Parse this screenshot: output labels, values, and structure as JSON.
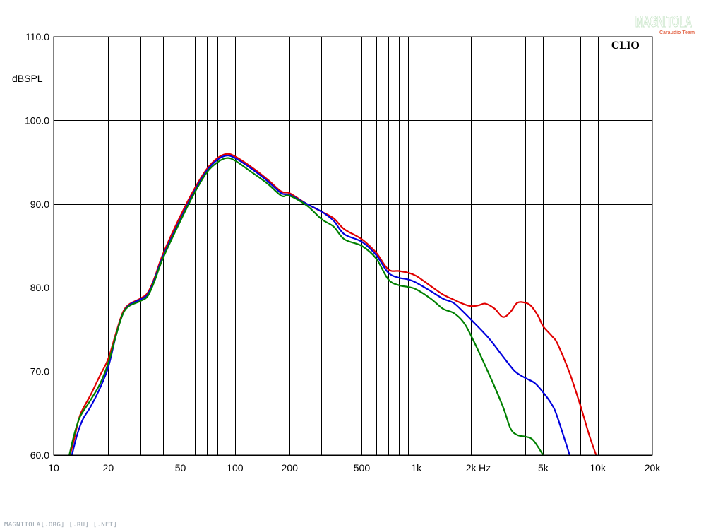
{
  "brand": "CLIO",
  "watermark": {
    "main": "MAGNITOLA",
    "sub": "Caraudio Team"
  },
  "footer": "MAGNITOLA[.ORG] [.RU] [.NET]",
  "chart_data": {
    "type": "line",
    "x_scale": "log",
    "xlim": [
      10,
      20000
    ],
    "ylim": [
      60,
      110
    ],
    "ylabel": "dBSPL",
    "xunit": "Hz",
    "grid": true,
    "y_ticks": [
      {
        "value": 60,
        "label": "60.0"
      },
      {
        "value": 70,
        "label": "70.0"
      },
      {
        "value": 80,
        "label": "80.0"
      },
      {
        "value": 90,
        "label": "90.0"
      },
      {
        "value": 100,
        "label": "100.0"
      },
      {
        "value": 110,
        "label": "110.0"
      }
    ],
    "x_ticks": [
      {
        "value": 10,
        "label": "10"
      },
      {
        "value": 20,
        "label": "20"
      },
      {
        "value": 50,
        "label": "50"
      },
      {
        "value": 100,
        "label": "100"
      },
      {
        "value": 200,
        "label": "200"
      },
      {
        "value": 500,
        "label": "500"
      },
      {
        "value": 1000,
        "label": "1k"
      },
      {
        "value": 2000,
        "label": "2k"
      },
      {
        "value": 5000,
        "label": "5k"
      },
      {
        "value": 10000,
        "label": "10k"
      },
      {
        "value": 20000,
        "label": "20k"
      }
    ],
    "series": [
      {
        "color": "#e00000",
        "points": [
          [
            12.3,
            60
          ],
          [
            13,
            62
          ],
          [
            14,
            64.8
          ],
          [
            16,
            67.2
          ],
          [
            18,
            69.5
          ],
          [
            20,
            71.5
          ],
          [
            22,
            74.5
          ],
          [
            24,
            77
          ],
          [
            26,
            78
          ],
          [
            30,
            78.7
          ],
          [
            33,
            79.4
          ],
          [
            36,
            81.2
          ],
          [
            40,
            84
          ],
          [
            50,
            88.6
          ],
          [
            60,
            91.9
          ],
          [
            70,
            94.2
          ],
          [
            80,
            95.5
          ],
          [
            90,
            96
          ],
          [
            100,
            95.7
          ],
          [
            120,
            94.6
          ],
          [
            150,
            93
          ],
          [
            180,
            91.5
          ],
          [
            200,
            91.3
          ],
          [
            250,
            90
          ],
          [
            300,
            89.1
          ],
          [
            350,
            88.3
          ],
          [
            400,
            87
          ],
          [
            500,
            85.8
          ],
          [
            600,
            84.2
          ],
          [
            700,
            82.2
          ],
          [
            800,
            82
          ],
          [
            900,
            81.8
          ],
          [
            1000,
            81.4
          ],
          [
            1200,
            80.2
          ],
          [
            1400,
            79.2
          ],
          [
            1600,
            78.6
          ],
          [
            1800,
            78.1
          ],
          [
            2000,
            77.8
          ],
          [
            2200,
            77.9
          ],
          [
            2400,
            78.1
          ],
          [
            2700,
            77.5
          ],
          [
            3000,
            76.5
          ],
          [
            3300,
            77.1
          ],
          [
            3600,
            78.2
          ],
          [
            4000,
            78.2
          ],
          [
            4300,
            77.8
          ],
          [
            4700,
            76.6
          ],
          [
            5000,
            75.4
          ],
          [
            5600,
            74.2
          ],
          [
            6000,
            73.3
          ],
          [
            7000,
            69.8
          ],
          [
            8000,
            66
          ],
          [
            9000,
            62.3
          ],
          [
            9800,
            60
          ]
        ]
      },
      {
        "color": "#0000dd",
        "points": [
          [
            12.6,
            60
          ],
          [
            13.5,
            62.5
          ],
          [
            14.5,
            64.3
          ],
          [
            16,
            65.8
          ],
          [
            18,
            68
          ],
          [
            20,
            70.5
          ],
          [
            22,
            74.2
          ],
          [
            24,
            76.8
          ],
          [
            26,
            77.9
          ],
          [
            30,
            78.6
          ],
          [
            33,
            79.2
          ],
          [
            36,
            81
          ],
          [
            40,
            83.7
          ],
          [
            50,
            88.2
          ],
          [
            60,
            91.6
          ],
          [
            70,
            94
          ],
          [
            80,
            95.3
          ],
          [
            90,
            95.8
          ],
          [
            100,
            95.5
          ],
          [
            120,
            94.4
          ],
          [
            150,
            92.8
          ],
          [
            180,
            91.3
          ],
          [
            200,
            91.1
          ],
          [
            250,
            90
          ],
          [
            300,
            89.1
          ],
          [
            350,
            88
          ],
          [
            400,
            86.4
          ],
          [
            500,
            85.5
          ],
          [
            600,
            83.9
          ],
          [
            700,
            81.8
          ],
          [
            800,
            81.2
          ],
          [
            900,
            81
          ],
          [
            1000,
            80.6
          ],
          [
            1200,
            79.6
          ],
          [
            1400,
            78.7
          ],
          [
            1600,
            78.2
          ],
          [
            1800,
            77.2
          ],
          [
            2000,
            76.2
          ],
          [
            2500,
            74
          ],
          [
            3000,
            71.8
          ],
          [
            3500,
            70
          ],
          [
            4000,
            69.2
          ],
          [
            4500,
            68.6
          ],
          [
            5000,
            67.5
          ],
          [
            5600,
            66
          ],
          [
            6000,
            64.5
          ],
          [
            7000,
            60
          ]
        ]
      },
      {
        "color": "#008000",
        "points": [
          [
            12.2,
            60
          ],
          [
            13,
            62.5
          ],
          [
            14,
            64.6
          ],
          [
            16,
            66.6
          ],
          [
            18,
            68.5
          ],
          [
            20,
            71
          ],
          [
            22,
            74.2
          ],
          [
            24,
            76.8
          ],
          [
            26,
            77.8
          ],
          [
            30,
            78.4
          ],
          [
            33,
            79
          ],
          [
            36,
            80.8
          ],
          [
            40,
            83.5
          ],
          [
            50,
            88
          ],
          [
            60,
            91.4
          ],
          [
            70,
            93.8
          ],
          [
            80,
            95
          ],
          [
            90,
            95.5
          ],
          [
            100,
            95.2
          ],
          [
            120,
            94
          ],
          [
            150,
            92.5
          ],
          [
            180,
            91
          ],
          [
            200,
            91
          ],
          [
            250,
            89.8
          ],
          [
            300,
            88.2
          ],
          [
            350,
            87.3
          ],
          [
            400,
            85.8
          ],
          [
            500,
            85
          ],
          [
            600,
            83.5
          ],
          [
            700,
            81
          ],
          [
            800,
            80.3
          ],
          [
            900,
            80.1
          ],
          [
            1000,
            79.8
          ],
          [
            1200,
            78.7
          ],
          [
            1400,
            77.5
          ],
          [
            1600,
            77
          ],
          [
            1800,
            76
          ],
          [
            2000,
            74.3
          ],
          [
            2500,
            69.8
          ],
          [
            3000,
            65.8
          ],
          [
            3300,
            63.2
          ],
          [
            3600,
            62.4
          ],
          [
            4000,
            62.2
          ],
          [
            4400,
            61.8
          ],
          [
            5000,
            60
          ]
        ]
      }
    ]
  }
}
